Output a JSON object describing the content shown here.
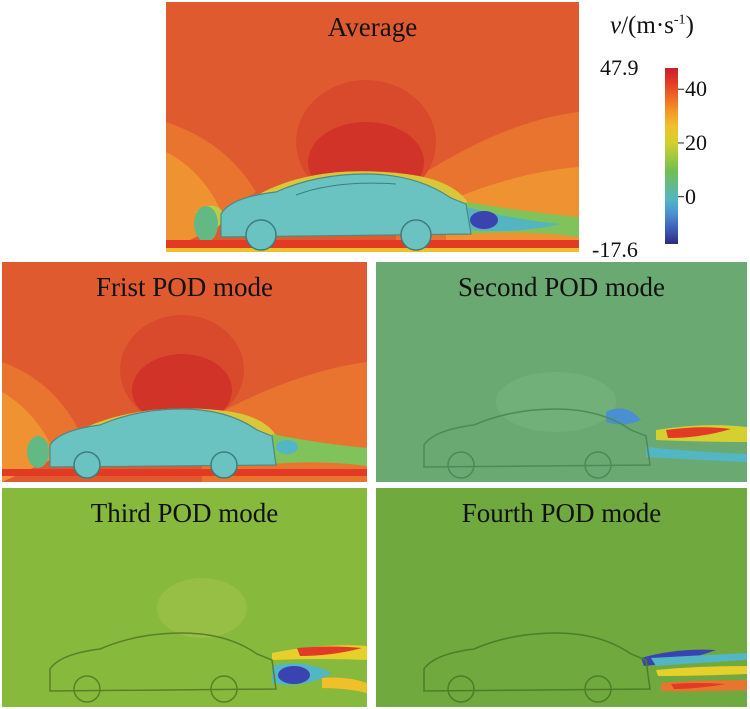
{
  "panels": {
    "average": {
      "title": "Average"
    },
    "mode1": {
      "title": "Frist POD mode"
    },
    "mode2": {
      "title": "Second POD mode"
    },
    "mode3": {
      "title": "Third POD mode"
    },
    "mode4": {
      "title": "Fourth POD mode"
    }
  },
  "colorbar": {
    "title_var": "v",
    "title_unit": "/(m·s",
    "title_exp": "-1",
    "title_close": ")",
    "max_label": "47.9",
    "min_label": "-17.6",
    "ticks": [
      "40",
      "20",
      "0"
    ],
    "range": [
      -17.6,
      47.9
    ],
    "tick_values": [
      40,
      20,
      0
    ],
    "colors": [
      "#2c2a7c",
      "#3b5bb5",
      "#4a8fd0",
      "#52b6c4",
      "#5fba8b",
      "#74bf4f",
      "#a4c93c",
      "#d5d02f",
      "#f0c02a",
      "#f39a27",
      "#ef6a26",
      "#e23a25",
      "#c8202a"
    ]
  },
  "colors": {
    "avg_bg": "#e05a30",
    "mode1_bg": "#e05a30",
    "mode2_bg": "#6aaa72",
    "mode3_bg": "#86b93c",
    "mode4_bg": "#70a93e",
    "car_body": "#6ac3c1",
    "stagnation_red": "#d23328",
    "wake_blue": "#3a44b0",
    "wake_yellow": "#e8d02c"
  }
}
